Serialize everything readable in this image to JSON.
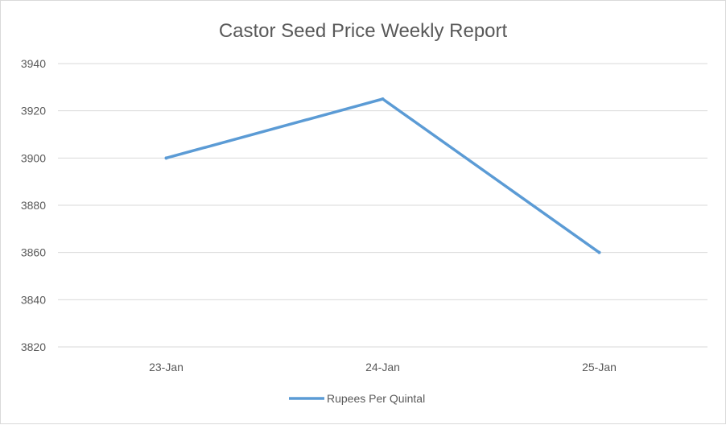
{
  "chart_data": {
    "type": "line",
    "title": "Castor Seed Price Weekly Report",
    "xlabel": "",
    "ylabel": "",
    "categories": [
      "23-Jan",
      "24-Jan",
      "25-Jan"
    ],
    "series": [
      {
        "name": "Rupees Per Quintal",
        "values": [
          3900,
          3925,
          3860
        ],
        "color": "#5b9bd5"
      }
    ],
    "ylim": [
      3820,
      3940
    ],
    "yticks": [
      3820,
      3840,
      3860,
      3880,
      3900,
      3920,
      3940
    ],
    "grid": true,
    "legend": "bottom",
    "colors": {
      "gridline": "#d9d9d9",
      "text": "#595959",
      "line": "#5b9bd5"
    }
  }
}
